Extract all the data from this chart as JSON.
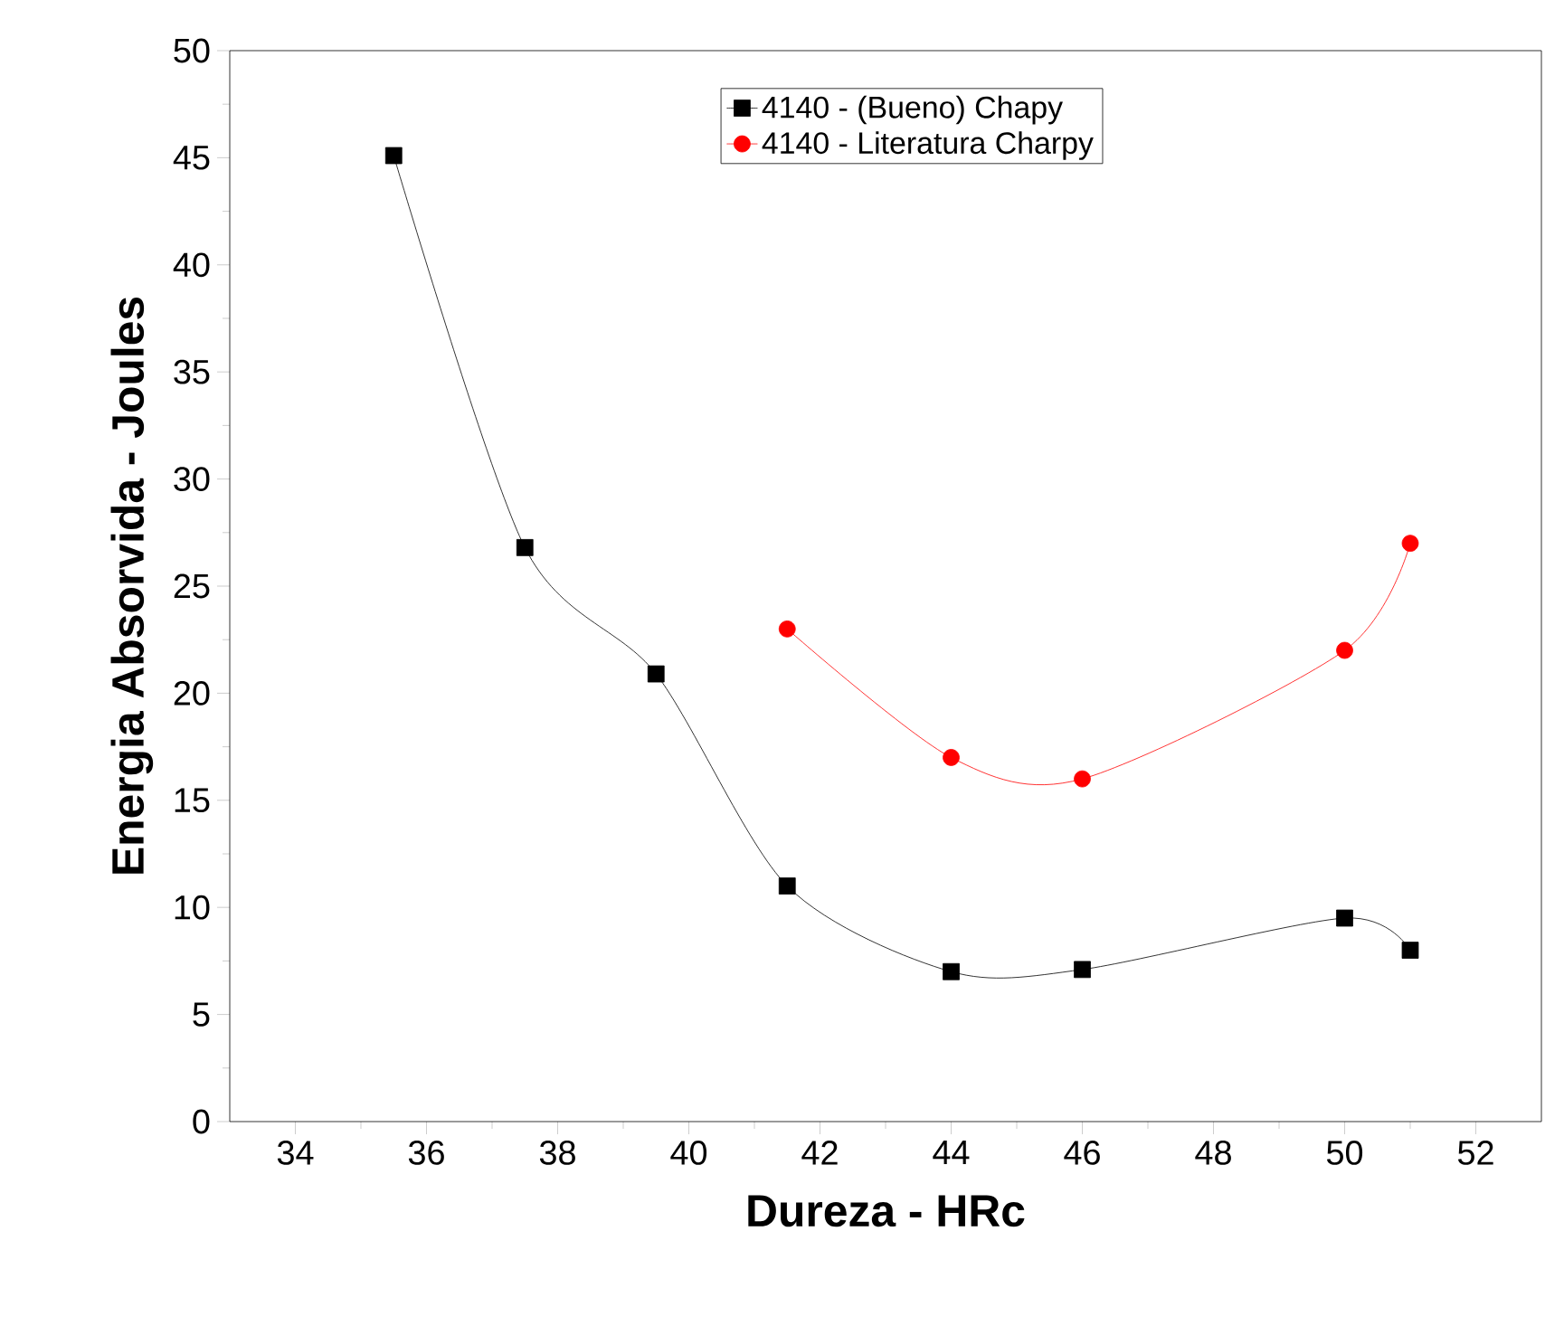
{
  "chart_data": {
    "type": "line",
    "xlabel": "Dureza - HRc",
    "ylabel": "Energia Absorvida - Joules",
    "xlim": [
      33,
      53
    ],
    "ylim": [
      0,
      50
    ],
    "xticks": [
      34,
      36,
      38,
      40,
      42,
      44,
      46,
      48,
      50,
      52
    ],
    "yticks": [
      0,
      5,
      10,
      15,
      20,
      25,
      30,
      35,
      40,
      45,
      50
    ],
    "grid": false,
    "legend": "top",
    "line_style": "solid",
    "series": [
      {
        "name": "4140 - (Bueno) Chapy",
        "color": "#000000",
        "marker": "square",
        "x": [
          35.5,
          37.5,
          39.5,
          41.5,
          44,
          46,
          50,
          51
        ],
        "values": [
          45.1,
          26.8,
          20.9,
          11,
          7,
          7.1,
          9.5,
          8
        ]
      },
      {
        "name": "4140 - Literatura Charpy",
        "color": "#ff0000",
        "marker": "circle",
        "x": [
          41.5,
          44,
          46,
          50,
          51
        ],
        "values": [
          23,
          17,
          16,
          22,
          27
        ]
      }
    ]
  }
}
